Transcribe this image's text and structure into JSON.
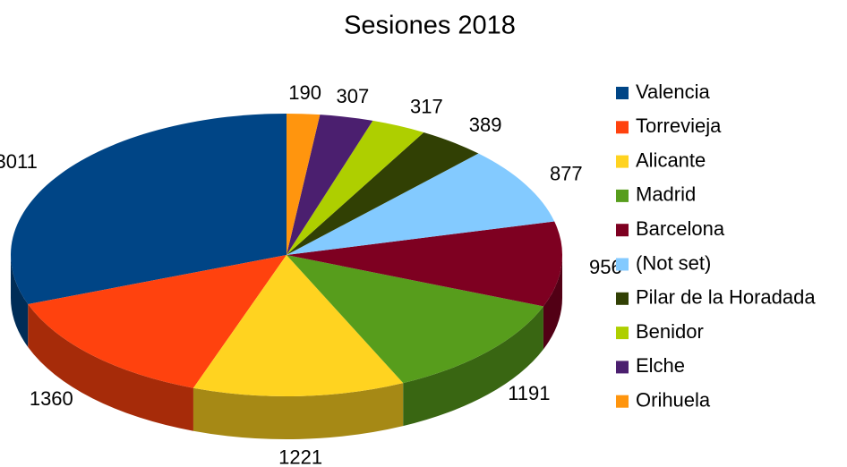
{
  "chart_data": {
    "type": "pie",
    "title": "Sesiones 2018",
    "categories": [
      "Valencia",
      "Torrevieja",
      "Alicante",
      "Madrid",
      "Barcelona",
      "(Not set)",
      "Pilar de la Horadada",
      "Benidor",
      "Elche",
      "Orihuela"
    ],
    "values": [
      3011,
      1360,
      1221,
      1191,
      956,
      877,
      389,
      317,
      307,
      190
    ],
    "colors": [
      "#004586",
      "#ff420e",
      "#ffd320",
      "#579d1c",
      "#7e0021",
      "#83caff",
      "#314004",
      "#aecf00",
      "#4b1f6f",
      "#ff950e"
    ],
    "legend": "right"
  }
}
